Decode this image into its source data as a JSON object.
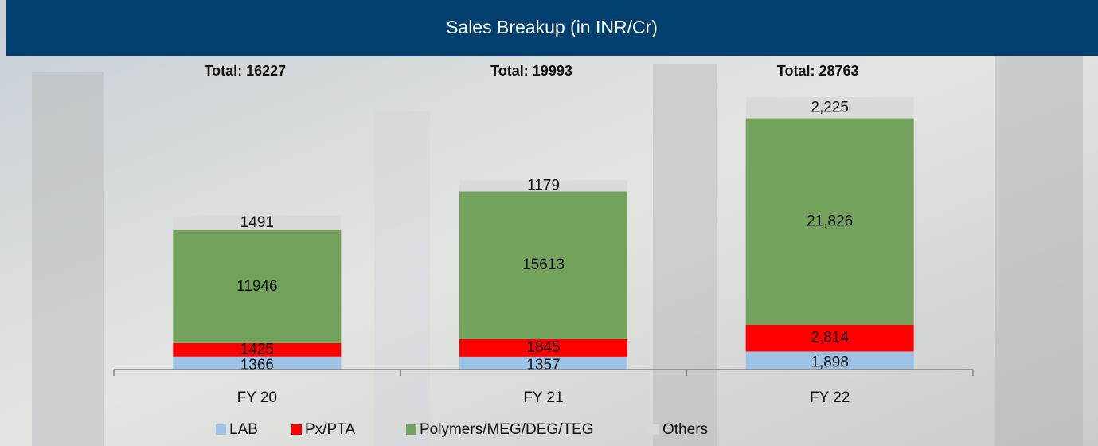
{
  "chart_data": {
    "type": "stacked_bar",
    "title": "Sales Breakup (in INR/Cr)",
    "categories": [
      "FY 20",
      "FY 21",
      "FY 22"
    ],
    "annotations": [
      "Total: 16227",
      "Total: 19993",
      "Total: 28763"
    ],
    "series": [
      {
        "name": "LAB",
        "color": "#9dc3e6",
        "values": [
          1366,
          1357,
          1898
        ],
        "value_labels": [
          "1366",
          "1357",
          "1,898"
        ]
      },
      {
        "name": "Px/PTA",
        "color": "#ff0000",
        "values": [
          1425,
          1845,
          2814
        ],
        "value_labels": [
          "1425",
          "1845",
          "2,814"
        ]
      },
      {
        "name": "Polymers/MEG/DEG/TEG",
        "color": "#72a25c",
        "values": [
          11946,
          15613,
          21826
        ],
        "value_labels": [
          "11946",
          "15613",
          "21,826"
        ]
      },
      {
        "name": "Others",
        "color": "#d9d9d9",
        "values": [
          1491,
          1179,
          2225
        ],
        "value_labels": [
          "1491",
          "1179",
          "2,225"
        ]
      }
    ],
    "ylim": [
      0,
      35000
    ]
  }
}
